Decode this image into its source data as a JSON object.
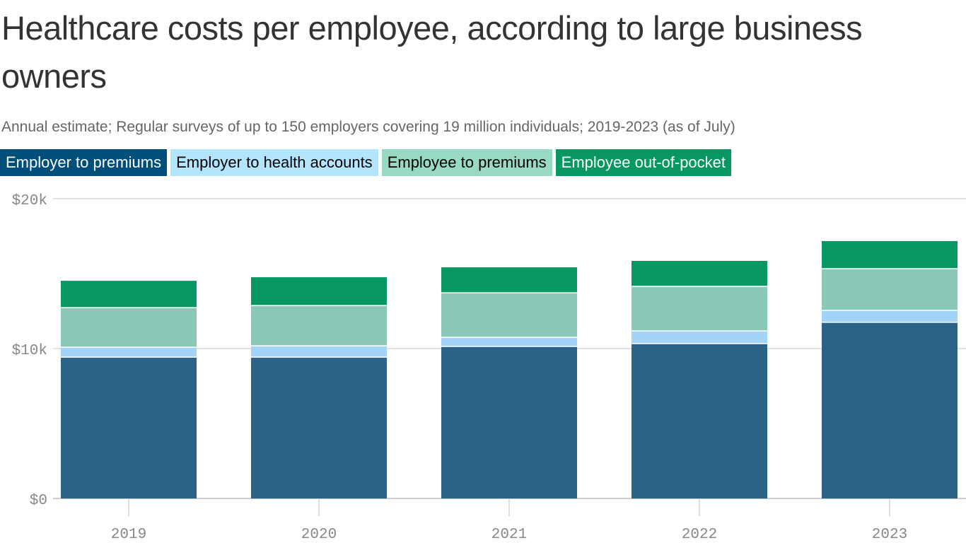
{
  "chart_data": {
    "type": "bar",
    "stacked": true,
    "title": "Healthcare costs per employee, according to large business owners",
    "subtitle": "Annual estimate; Regular surveys of up to 150 employers covering 19 million individuals; 2019-2023 (as of July)",
    "categories": [
      "2019",
      "2020",
      "2021",
      "2022",
      "2023"
    ],
    "series": [
      {
        "name": "Employer to premiums",
        "color": "#2b6388",
        "legend_color": "#004f7a",
        "legend_text_color": "#ffffff",
        "values": [
          9430,
          9430,
          10140,
          10330,
          11750
        ]
      },
      {
        "name": "Employer to health accounts",
        "color": "#a3d4f7",
        "legend_color": "#b3e5fc",
        "legend_text_color": "#000000",
        "values": [
          660,
          750,
          610,
          850,
          800
        ]
      },
      {
        "name": "Employee to premiums",
        "color": "#8ac8b7",
        "legend_color": "#97d9c5",
        "legend_text_color": "#000000",
        "values": [
          2640,
          2690,
          2970,
          2970,
          2780
        ]
      },
      {
        "name": "Employee out-of-pocket",
        "color": "#069762",
        "legend_color": "#069762",
        "legend_text_color": "#ffffff",
        "values": [
          1790,
          1890,
          1700,
          1700,
          1840
        ]
      }
    ],
    "yticks": [
      {
        "value": 0,
        "label": "$0"
      },
      {
        "value": 10000,
        "label": "$10k"
      },
      {
        "value": 20000,
        "label": "$20k"
      }
    ],
    "ylim": [
      0,
      20000
    ],
    "grid": true,
    "legend_placement": "top-left",
    "xlabel": "",
    "ylabel": ""
  }
}
